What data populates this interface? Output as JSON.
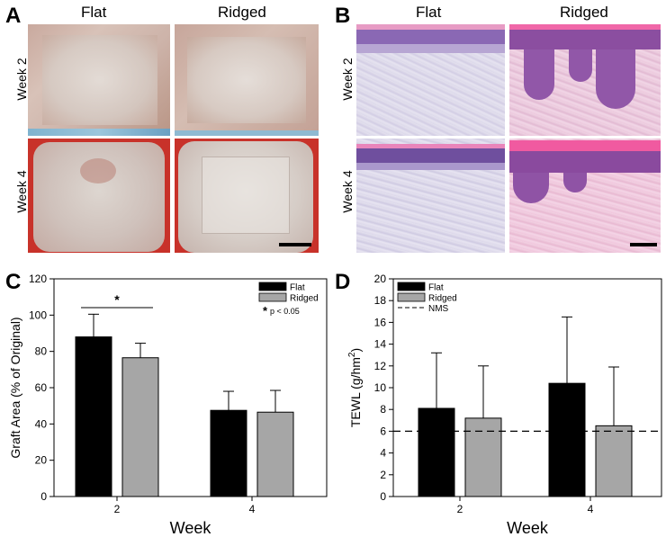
{
  "figure": {
    "panels": {
      "A": {
        "letter": "A",
        "columns": [
          "Flat",
          "Ridged"
        ],
        "rows": [
          "Week 2",
          "Week 4"
        ]
      },
      "B": {
        "letter": "B",
        "columns": [
          "Flat",
          "Ridged"
        ],
        "rows": [
          "Week 2",
          "Week 4"
        ]
      },
      "C": {
        "letter": "C"
      },
      "D": {
        "letter": "D"
      }
    }
  },
  "chart_data": [
    {
      "panel": "C",
      "type": "bar",
      "categories": [
        "2",
        "4"
      ],
      "series": [
        {
          "name": "Flat",
          "values": [
            88,
            47.5
          ],
          "errors": [
            12.5,
            10.5
          ],
          "color": "#000000"
        },
        {
          "name": "Ridged",
          "values": [
            76.5,
            46.5
          ],
          "errors": [
            8,
            12
          ],
          "color": "#a6a6a6"
        }
      ],
      "xlabel": "Week",
      "ylabel": "Graft Area (% of Original)",
      "ylim": [
        0,
        120
      ],
      "yticks": [
        0,
        20,
        40,
        60,
        80,
        100,
        120
      ],
      "legend_placement": "top-right",
      "significance": {
        "marker": "*",
        "between": "Flat vs Ridged at week 2",
        "legend_text": "p < 0.05"
      }
    },
    {
      "panel": "D",
      "type": "bar",
      "categories": [
        "2",
        "4"
      ],
      "series": [
        {
          "name": "Flat",
          "values": [
            8.1,
            10.4
          ],
          "errors": [
            5.1,
            6.1
          ],
          "color": "#000000"
        },
        {
          "name": "Ridged",
          "values": [
            7.2,
            6.5
          ],
          "errors": [
            4.8,
            5.4
          ],
          "color": "#a6a6a6"
        }
      ],
      "reference_line": {
        "name": "NMS",
        "value": 6.0,
        "style": "dashed"
      },
      "xlabel": "Week",
      "ylabel": "TEWL (g/hm",
      "ylabel_sup": "2",
      "ylabel_end": ")",
      "ylim": [
        0,
        20
      ],
      "yticks": [
        0,
        2,
        4,
        6,
        8,
        10,
        12,
        14,
        16,
        18,
        20
      ],
      "legend_placement": "top-left"
    }
  ]
}
